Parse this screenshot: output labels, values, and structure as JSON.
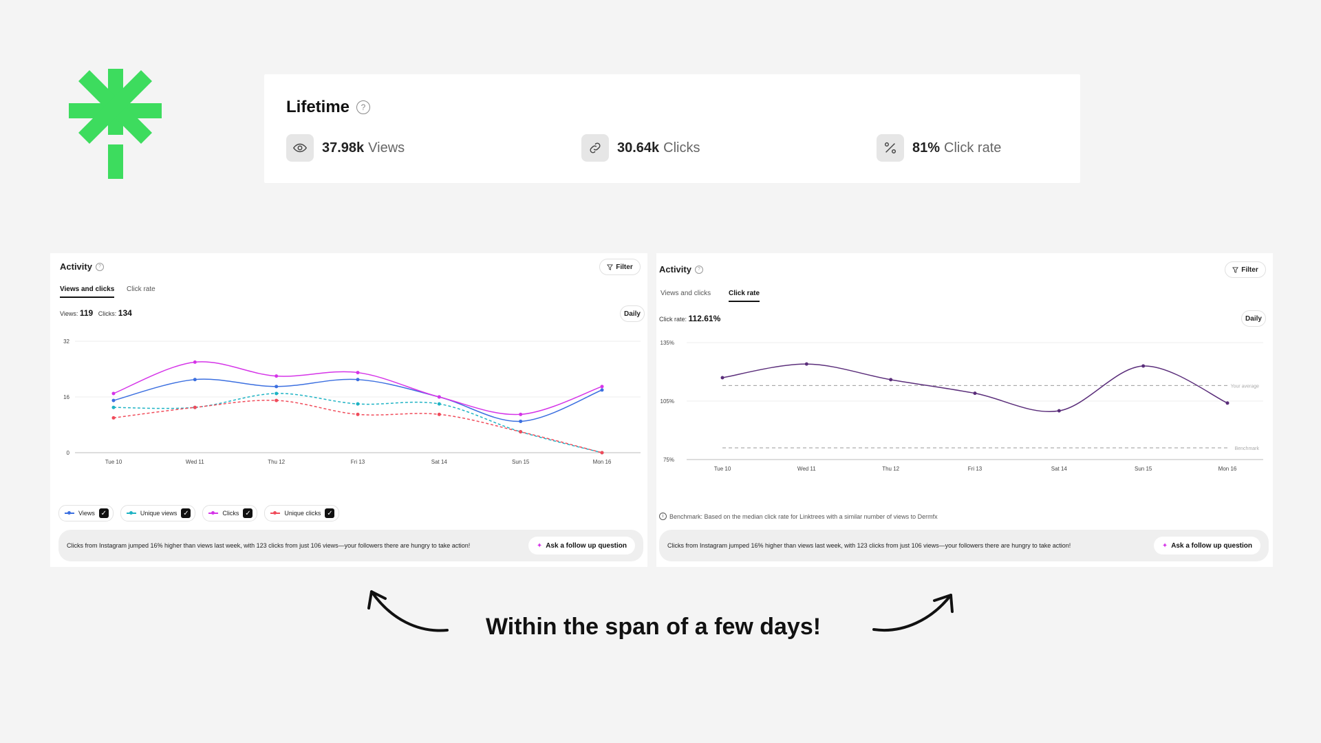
{
  "lifetime": {
    "title": "Lifetime",
    "help_icon": "?",
    "stats": [
      {
        "icon": "eye-icon",
        "value": "37.98k",
        "label": "Views"
      },
      {
        "icon": "link-icon",
        "value": "30.64k",
        "label": "Clicks"
      },
      {
        "icon": "percent-icon",
        "value": "81%",
        "label": "Click rate"
      }
    ]
  },
  "left_card": {
    "title": "Activity",
    "filter_label": "Filter",
    "daily_label": "Daily",
    "tabs": [
      "Views and clicks",
      "Click rate"
    ],
    "views_label": "Views:",
    "views_value": "119",
    "clicks_label": "Clicks:",
    "clicks_value": "134",
    "legend": [
      {
        "name": "Views",
        "color": "#3b6fe0"
      },
      {
        "name": "Unique views",
        "color": "#1eb3c4"
      },
      {
        "name": "Clicks",
        "color": "#d534e8"
      },
      {
        "name": "Unique clicks",
        "color": "#f04b5a"
      }
    ],
    "insight": "Clicks from Instagram jumped 16% higher than views last week, with 123 clicks from just 106 views—your followers there are hungry to take action!",
    "ask_label": "Ask a follow up question"
  },
  "right_card": {
    "title": "Activity",
    "filter_label": "Filter",
    "daily_label": "Daily",
    "tabs": [
      "Views and clicks",
      "Click rate"
    ],
    "rate_label": "Click rate:",
    "rate_value": "112.61%",
    "benchmark_note": "Benchmark: Based on the median click rate for Linktrees with a similar number of views to Dermfx",
    "insight": "Clicks from Instagram jumped 16% higher than views last week, with 123 clicks from just 106 views—your followers there are hungry to take action!",
    "ask_label": "Ask a follow up question"
  },
  "caption": "Within the span of a few days!",
  "colors": {
    "logo": "#3ddc5e",
    "purple_line": "#5a2d7a"
  },
  "chart_data": [
    {
      "type": "line",
      "categories": [
        "Tue 10",
        "Wed 11",
        "Thu 12",
        "Fri 13",
        "Sat 14",
        "Sun 15",
        "Mon 16"
      ],
      "ylim": [
        0,
        32
      ],
      "yticks": [
        "0",
        "16",
        "32"
      ],
      "grid": true,
      "series": [
        {
          "name": "Views",
          "color": "#3b6fe0",
          "dashed": false,
          "values": [
            15,
            21,
            19,
            21,
            16,
            9,
            18
          ]
        },
        {
          "name": "Unique views",
          "color": "#1eb3c4",
          "dashed": true,
          "values": [
            13,
            13,
            17,
            14,
            14,
            6,
            0
          ]
        },
        {
          "name": "Clicks",
          "color": "#d534e8",
          "dashed": false,
          "values": [
            17,
            26,
            22,
            23,
            16,
            11,
            19
          ]
        },
        {
          "name": "Unique clicks",
          "color": "#f04b5a",
          "dashed": true,
          "values": [
            10,
            13,
            15,
            11,
            11,
            6,
            0
          ]
        }
      ]
    },
    {
      "type": "line",
      "categories": [
        "Tue 10",
        "Wed 11",
        "Thu 12",
        "Fri 13",
        "Sat 14",
        "Sun 15",
        "Mon 16"
      ],
      "ylim": [
        75,
        135
      ],
      "yticks": [
        "75%",
        "105%",
        "135%"
      ],
      "grid": true,
      "series": [
        {
          "name": "Click rate",
          "color": "#5a2d7a",
          "dashed": false,
          "values": [
            117,
            124,
            116,
            109,
            100,
            123,
            104
          ]
        }
      ],
      "reference_lines": [
        {
          "label": "Your average",
          "value": 113
        },
        {
          "label": "Benchmark",
          "value": 81
        }
      ]
    }
  ]
}
